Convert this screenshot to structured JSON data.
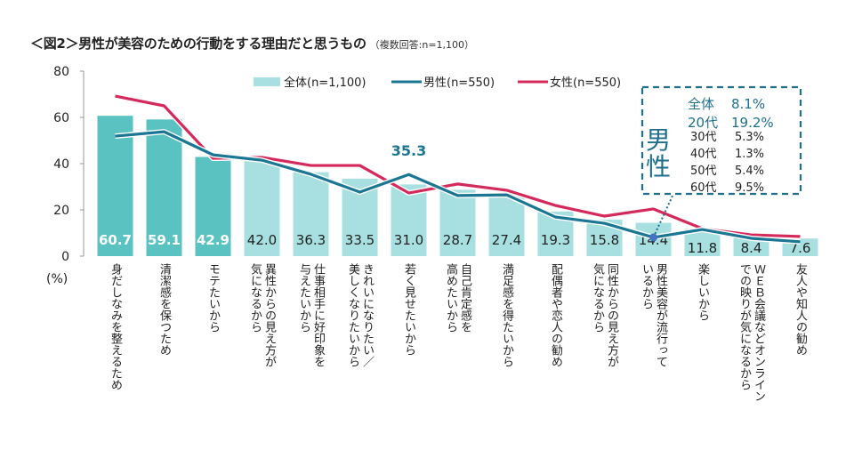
{
  "title": "＜図2＞男性が美容のための行動をする理由だと思うもの",
  "subtitle": "（複数回答:n=1,100）",
  "chart_data": {
    "type": "bar",
    "title": "＜図2＞男性が美容のための行動をする理由だと思うもの",
    "subtitle": "（複数回答:n=1,100）",
    "xlabel": "",
    "ylabel": "(%)",
    "ylim": [
      0,
      80
    ],
    "yticks": [
      0,
      20,
      40,
      60,
      80
    ],
    "grid": false,
    "legend_position": "top",
    "categories": [
      "身だしなみを整えるため",
      "清潔感を保つため",
      "モテたいから",
      "異性からの見え方が気になるから",
      "仕事相手に好印象を与えたいから",
      "きれいになりたい／美しくなりたいから",
      "若く見せたいから",
      "自己肯定感を高めたいから",
      "満足感を得たいから",
      "配偶者や恋人の勧め",
      "同性からの見え方が気になるから",
      "男性美容が流行っているから",
      "楽しいから",
      "ＷＥＢ会議などオンラインでの映りが気になるから",
      "友人や知人の勧め"
    ],
    "categories_display": [
      [
        "身だしなみを整えるため"
      ],
      [
        "清潔感を保つため"
      ],
      [
        "モテたいから"
      ],
      [
        "異性からの見え方が",
        "気になるから"
      ],
      [
        "仕事相手に好印象を",
        "与えたいから"
      ],
      [
        "きれいになりたい／",
        "美しくなりたいから"
      ],
      [
        "若く見せたいから"
      ],
      [
        "自己肯定感を",
        "高めたいから"
      ],
      [
        "満足感を得たいから"
      ],
      [
        "配偶者や恋人の勧め"
      ],
      [
        "同性からの見え方が",
        "気になるから"
      ],
      [
        "男性美容が流行って",
        "いるから"
      ],
      [
        "楽しいから"
      ],
      [
        "ＷＥＢ会議などオンライン",
        "での映りが気になるから"
      ],
      [
        "友人や知人の勧め"
      ]
    ],
    "series": [
      {
        "name": "全体(n=1,100)",
        "type": "bar",
        "values": [
          60.7,
          59.1,
          42.9,
          42.0,
          36.3,
          33.5,
          31.0,
          28.7,
          27.4,
          19.3,
          15.8,
          14.4,
          11.8,
          8.4,
          7.6
        ],
        "highlight_top": 3
      },
      {
        "name": "男性(n=550)",
        "type": "line",
        "values": [
          51.9,
          53.8,
          43.8,
          41.5,
          35.4,
          27.7,
          35.3,
          26.2,
          26.5,
          16.9,
          14.2,
          8.1,
          11.5,
          7.7,
          6.2
        ]
      },
      {
        "name": "女性(n=550)",
        "type": "line",
        "values": [
          69.2,
          65.0,
          42.3,
          42.7,
          39.2,
          39.2,
          27.3,
          31.2,
          28.5,
          21.9,
          17.3,
          20.4,
          11.9,
          9.2,
          8.5
        ]
      }
    ],
    "annotations": [
      {
        "text": "35.3",
        "series": "男性(n=550)",
        "category_index": 6
      },
      {
        "type": "callout",
        "category_index": 11,
        "series": "男性(n=550)",
        "label": "男性",
        "rows": [
          {
            "label": "全体",
            "value": "8.1%",
            "emphasis": true
          },
          {
            "label": "20代",
            "value": "19.2%",
            "emphasis": true
          },
          {
            "label": "30代",
            "value": "5.3%",
            "emphasis": false
          },
          {
            "label": "40代",
            "value": "1.3%",
            "emphasis": false
          },
          {
            "label": "50代",
            "value": "5.4%",
            "emphasis": false
          },
          {
            "label": "60代",
            "value": "9.5%",
            "emphasis": false
          }
        ]
      }
    ]
  },
  "colors": {
    "bar_dark": "#5bc2c2",
    "bar_light": "#a8dfe0",
    "men": "#1a7693",
    "women": "#d42a5b",
    "callout": "#1e6e8c",
    "axis": "#999999",
    "label_light": "#ffffff",
    "label_dark": "#222222"
  }
}
